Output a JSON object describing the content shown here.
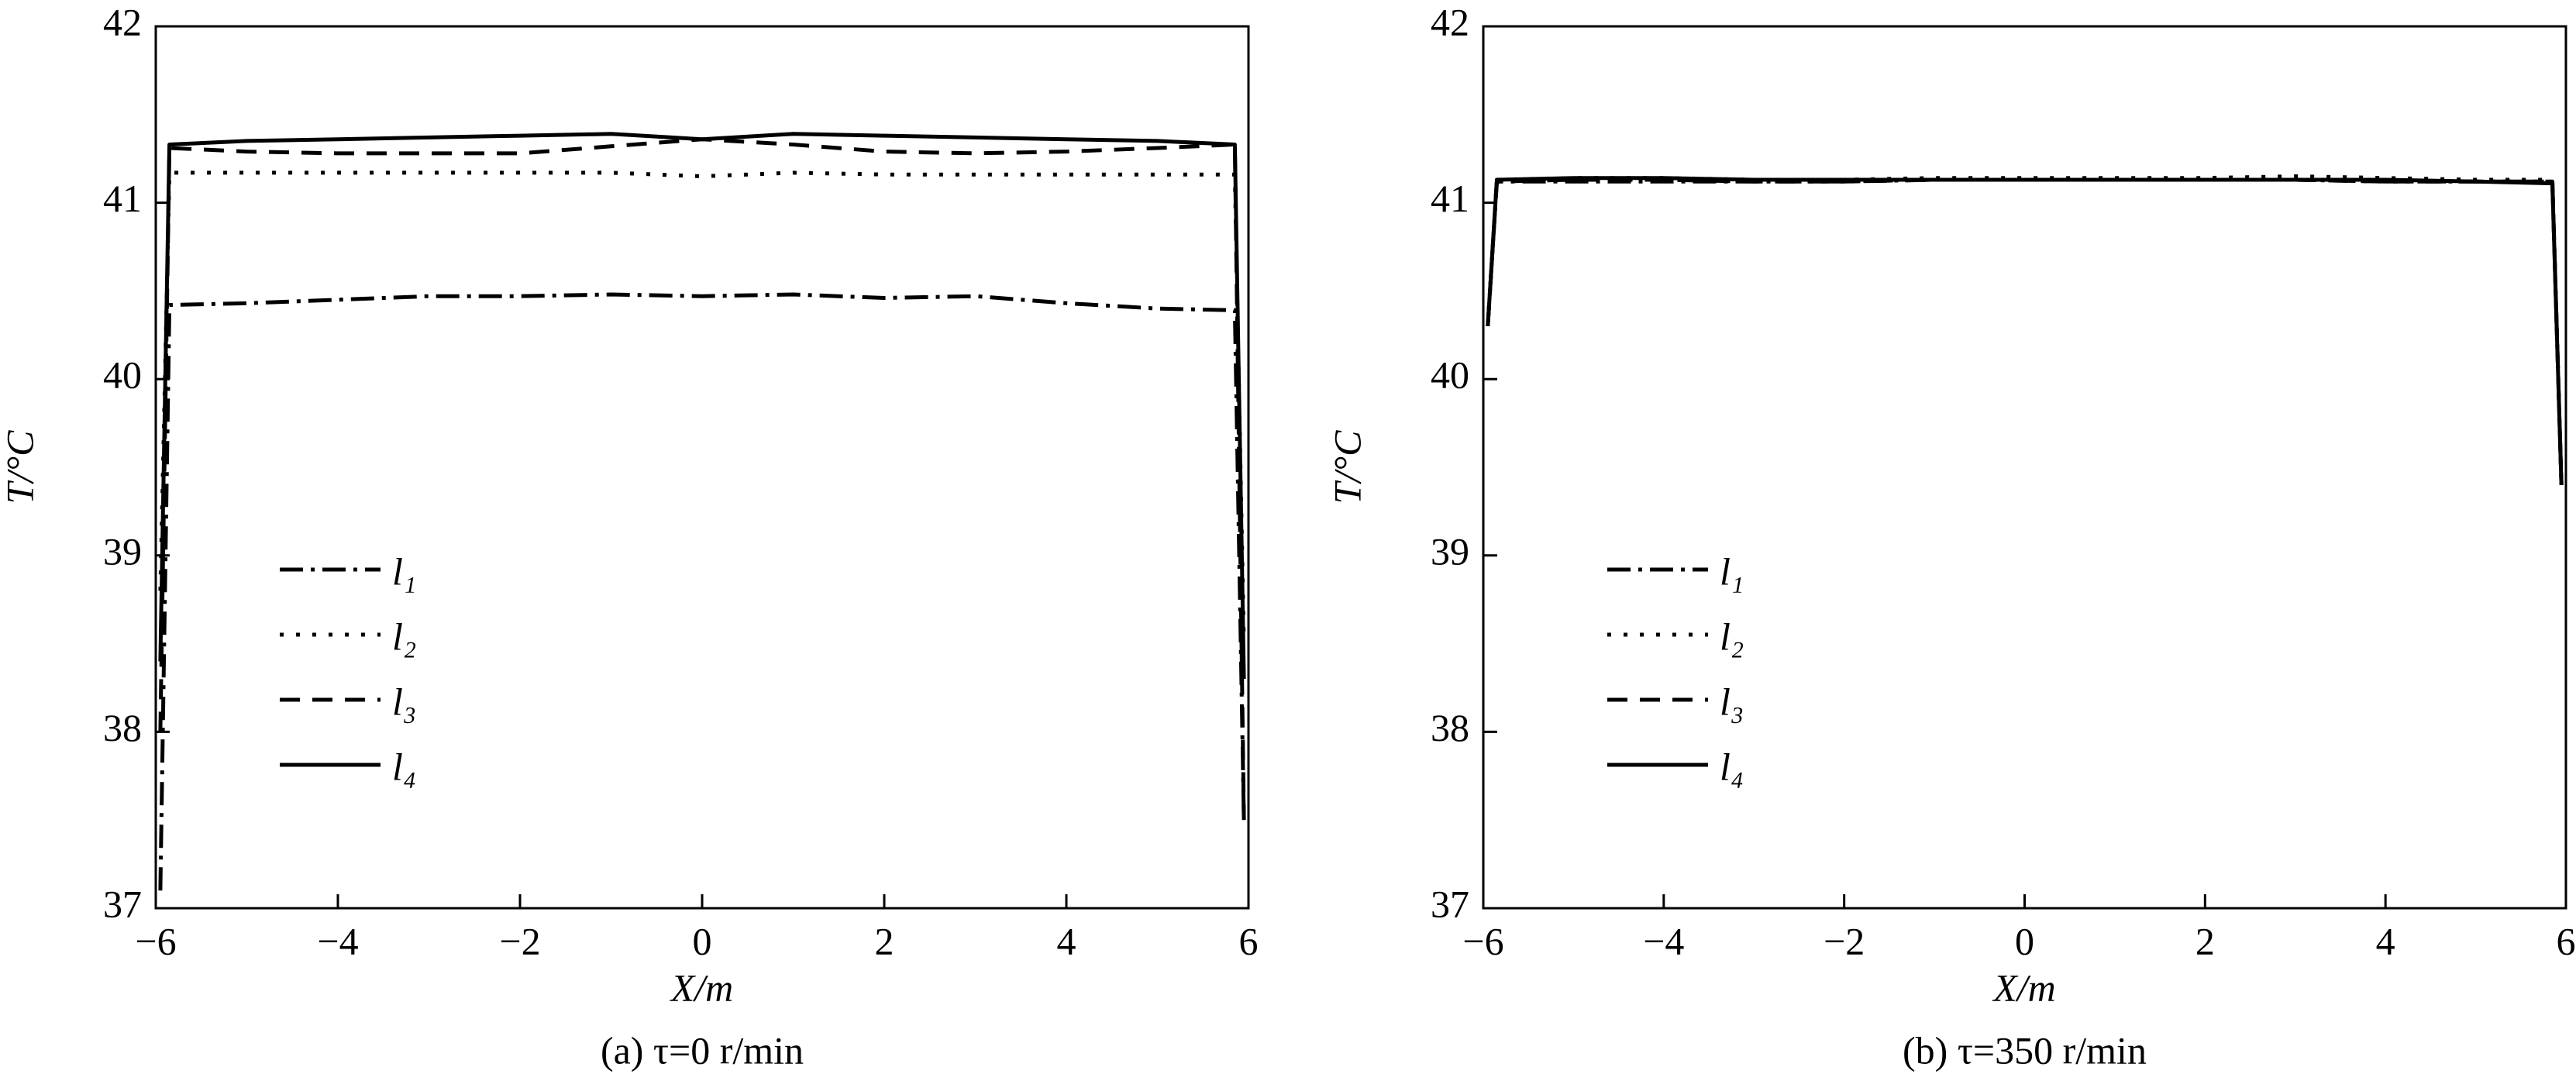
{
  "chart_data": [
    {
      "type": "line",
      "caption": "(a) τ=0 r/min",
      "xlabel": "X/m",
      "ylabel": "T/°C",
      "x": [
        -5.95,
        -5.85,
        -5,
        -4,
        -3,
        -2,
        -1,
        0,
        1,
        2,
        3,
        4,
        5,
        5.85,
        5.95
      ],
      "xlim": [
        -6,
        6
      ],
      "ylim": [
        37,
        42
      ],
      "xticks": [
        {
          "value": -6,
          "label": "−6"
        },
        {
          "value": -4,
          "label": "−4"
        },
        {
          "value": -2,
          "label": "−2"
        },
        0,
        2,
        4,
        6
      ],
      "yticks": [
        37,
        38,
        39,
        40,
        41,
        42
      ],
      "legend": "center left",
      "series": [
        {
          "name": "l₁",
          "color": "#000000",
          "linestyle": "dashdot",
          "values": [
            37.1,
            40.42,
            40.43,
            40.45,
            40.47,
            40.47,
            40.48,
            40.47,
            40.48,
            40.46,
            40.47,
            40.43,
            40.4,
            40.39,
            37.5
          ]
        },
        {
          "name": "l₂",
          "color": "#000000",
          "linestyle": "dotted",
          "values": [
            38.8,
            41.17,
            41.17,
            41.17,
            41.17,
            41.17,
            41.17,
            41.15,
            41.17,
            41.16,
            41.16,
            41.16,
            41.16,
            41.16,
            38.5
          ]
        },
        {
          "name": "l₃",
          "color": "#000000",
          "linestyle": "dashed",
          "values": [
            38.0,
            41.31,
            41.29,
            41.28,
            41.28,
            41.28,
            41.32,
            41.36,
            41.33,
            41.29,
            41.28,
            41.29,
            41.31,
            41.33,
            37.5
          ]
        },
        {
          "name": "l₄",
          "color": "#000000",
          "linestyle": "solid",
          "values": [
            38.4,
            41.33,
            41.35,
            41.36,
            41.37,
            41.38,
            41.39,
            41.36,
            41.39,
            41.38,
            41.37,
            41.36,
            41.35,
            41.33,
            38.3
          ]
        }
      ]
    },
    {
      "type": "line",
      "caption": "(b) τ=350 r/min",
      "xlabel": "X/m",
      "ylabel": "T/°C",
      "x": [
        -5.95,
        -5.85,
        -5,
        -4,
        -3,
        -2,
        -1,
        0,
        1,
        2,
        3,
        4,
        5,
        5.85,
        5.95
      ],
      "xlim": [
        -6,
        6
      ],
      "ylim": [
        37,
        42
      ],
      "xticks": [
        {
          "value": -6,
          "label": "−6"
        },
        {
          "value": -4,
          "label": "−4"
        },
        {
          "value": -2,
          "label": "−2"
        },
        0,
        2,
        4,
        6
      ],
      "yticks": [
        37,
        38,
        39,
        40,
        41,
        42
      ],
      "legend": "center left",
      "series": [
        {
          "name": "l₁",
          "color": "#000000",
          "linestyle": "dashdot",
          "values": [
            40.3,
            41.12,
            41.12,
            41.12,
            41.12,
            41.12,
            41.13,
            41.13,
            41.13,
            41.13,
            41.13,
            41.12,
            41.12,
            41.12,
            39.4
          ]
        },
        {
          "name": "l₂",
          "color": "#000000",
          "linestyle": "dotted",
          "values": [
            40.3,
            41.13,
            41.14,
            41.14,
            41.13,
            41.13,
            41.14,
            41.14,
            41.14,
            41.14,
            41.15,
            41.14,
            41.13,
            41.13,
            39.4
          ]
        },
        {
          "name": "l₃",
          "color": "#000000",
          "linestyle": "dashed",
          "values": [
            40.3,
            41.12,
            41.13,
            41.13,
            41.12,
            41.12,
            41.13,
            41.13,
            41.13,
            41.13,
            41.13,
            41.12,
            41.12,
            41.12,
            39.4
          ]
        },
        {
          "name": "l₄",
          "color": "#000000",
          "linestyle": "solid",
          "values": [
            40.3,
            41.13,
            41.14,
            41.14,
            41.13,
            41.13,
            41.13,
            41.13,
            41.13,
            41.13,
            41.13,
            41.13,
            41.12,
            41.11,
            39.4
          ]
        }
      ]
    }
  ]
}
